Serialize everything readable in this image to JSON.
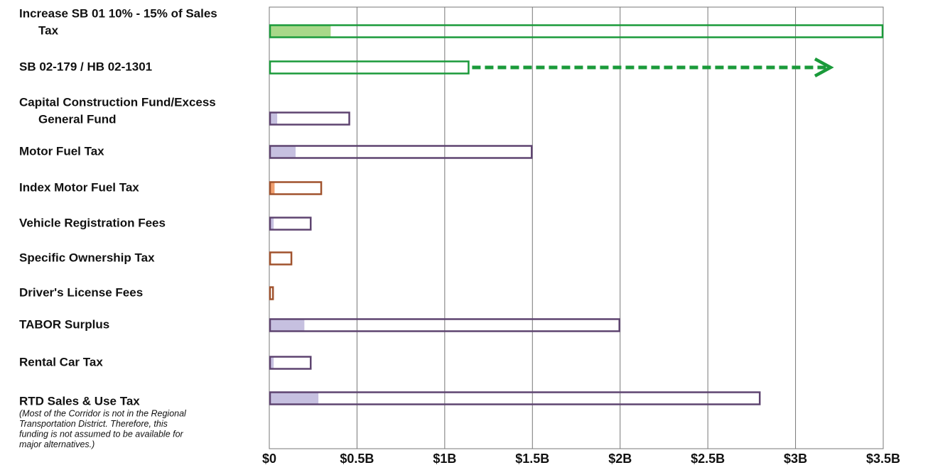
{
  "chart_data": {
    "type": "bar",
    "orientation": "horizontal",
    "categories": [
      [
        "Increase SB 01 10% - 15% of Sales",
        "Tax"
      ],
      [
        "SB 02-179 / HB 02-1301"
      ],
      [
        "Capital Construction Fund/Excess",
        "General Fund"
      ],
      [
        "Motor Fuel Tax"
      ],
      [
        "Index Motor Fuel Tax"
      ],
      [
        "Vehicle Registration Fees"
      ],
      [
        "Specific Ownership Tax"
      ],
      [
        "Driver's License Fees"
      ],
      [
        "TABOR Surplus"
      ],
      [
        "Rental Car Tax"
      ],
      [
        "RTD Sales & Use Tax"
      ]
    ],
    "note": [
      "(Most of the Corridor is not in the Regional",
      "Transportation District.  Therefore, this",
      "funding is not assumed to be available for",
      "major alternatives.)"
    ],
    "totals": [
      3.5,
      1.14,
      0.46,
      1.5,
      0.3,
      0.24,
      0.13,
      0.025,
      2.0,
      0.24,
      2.8
    ],
    "shares": [
      0.35,
      null,
      0.045,
      0.15,
      0.03,
      0.025,
      0.01,
      null,
      0.2,
      0.025,
      0.28
    ],
    "extensions": [
      null,
      3.2,
      null,
      null,
      null,
      null,
      null,
      null,
      null,
      null,
      null
    ],
    "outline_colors": [
      "#1a9a3a",
      "#1a9a3a",
      "#5e4470",
      "#5e4470",
      "#a0522d",
      "#5e4470",
      "#a0522d",
      "#a0522d",
      "#5e4470",
      "#5e4470",
      "#5e4470"
    ],
    "fill_colors": [
      "#a8d889",
      "#a8d889",
      "#c6c0e0",
      "#c6c0e0",
      "#f0a070",
      "#c6c0e0",
      "#f0a070",
      "#f0a070",
      "#c6c0e0",
      "#c6c0e0",
      "#c6c0e0"
    ],
    "xlim": [
      0,
      3.5
    ],
    "xticks": [
      {
        "value": 0,
        "label": "$0"
      },
      {
        "value": 0.5,
        "label": "$0.5B"
      },
      {
        "value": 1,
        "label": "$1B"
      },
      {
        "value": 1.5,
        "label": "$1.5B"
      },
      {
        "value": 2,
        "label": "$2B"
      },
      {
        "value": 2.5,
        "label": "$2.5B"
      },
      {
        "value": 3,
        "label": "$3B"
      },
      {
        "value": 3.5,
        "label": "$3.5B"
      }
    ],
    "grid": true
  }
}
